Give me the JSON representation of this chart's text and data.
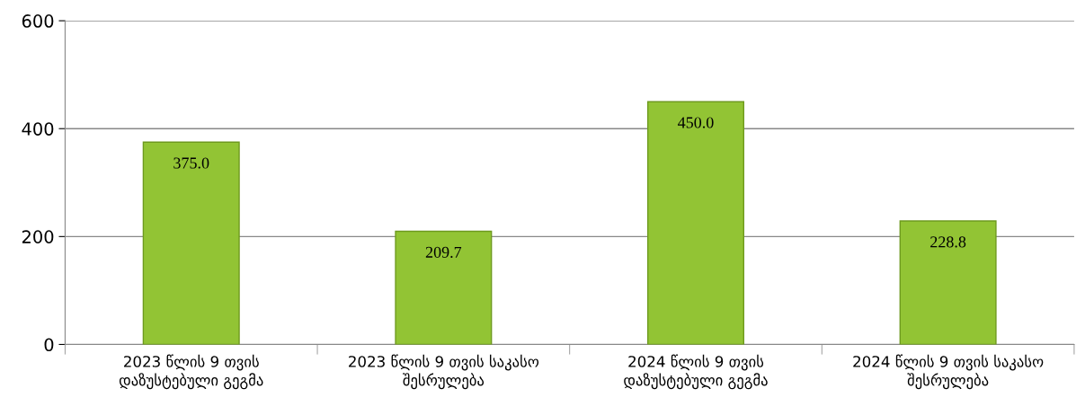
{
  "chart_data": {
    "type": "bar",
    "categories": [
      "2023 წლის 9 თვის დაზუსტებული გეგმა",
      "2023 წლის 9 თვის საკასო შესრულება",
      "2024 წლის 9 თვის დაზუსტებული გეგმა",
      "2024 წლის 9 თვის საკასო შესრულება"
    ],
    "values": [
      375.0,
      209.7,
      450.0,
      228.8
    ],
    "value_labels": [
      "375.0",
      "209.7",
      "450.0",
      "228.8"
    ],
    "color": "#92c434",
    "ylim": [
      0,
      600
    ],
    "yticks": [
      0,
      200,
      400,
      600
    ],
    "grid": "y"
  }
}
